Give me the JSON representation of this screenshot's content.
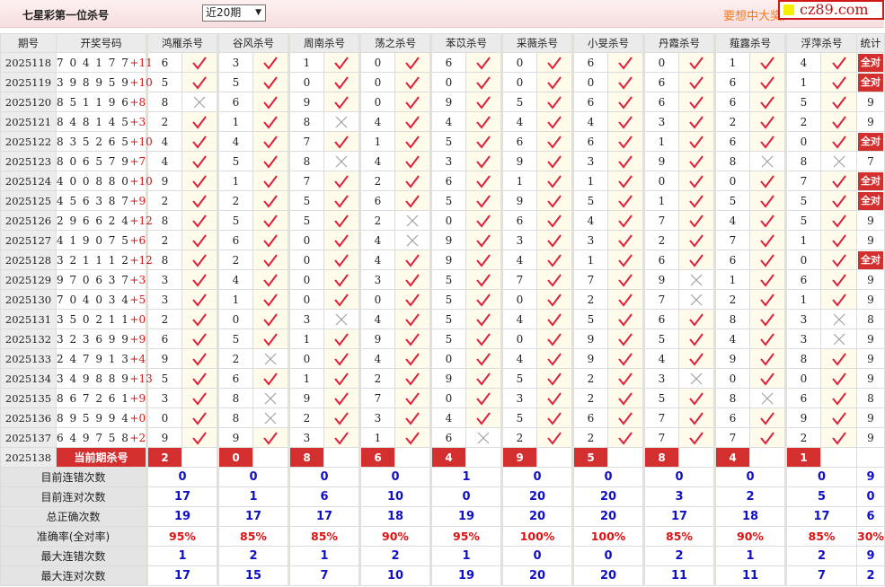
{
  "header": {
    "title": "七星彩第一位杀号",
    "period_select": "近20期",
    "promo": "要想中大奖,",
    "logo": "cz89.com"
  },
  "colors": {
    "hit": "#e0203a",
    "miss": "#999999",
    "accent": "#d32f2f",
    "stat_blue": "#1010c8"
  },
  "columns": [
    "期号",
    "开奖号码",
    "鸿雁杀号",
    "谷风杀号",
    "周南杀号",
    "荡之杀号",
    "苯苡杀号",
    "采薇杀号",
    "小旻杀号",
    "丹霞杀号",
    "薤露杀号",
    "浮萍杀号",
    "统计"
  ],
  "rows": [
    {
      "period": "2025118",
      "numbers": "704177",
      "bonus": "+11",
      "kills": [
        6,
        3,
        1,
        0,
        6,
        0,
        6,
        0,
        1,
        4
      ],
      "hits": [
        1,
        1,
        1,
        1,
        1,
        1,
        1,
        1,
        1,
        1
      ],
      "stat": "全对"
    },
    {
      "period": "2025119",
      "numbers": "398959",
      "bonus": "+10",
      "kills": [
        5,
        5,
        0,
        0,
        0,
        0,
        0,
        6,
        6,
        1
      ],
      "hits": [
        1,
        1,
        1,
        1,
        1,
        1,
        1,
        1,
        1,
        1
      ],
      "stat": "全对"
    },
    {
      "period": "2025120",
      "numbers": "851196",
      "bonus": "+8",
      "kills": [
        8,
        6,
        9,
        0,
        9,
        5,
        6,
        6,
        6,
        5
      ],
      "hits": [
        0,
        1,
        1,
        1,
        1,
        1,
        1,
        1,
        1,
        1
      ],
      "stat": "9"
    },
    {
      "period": "2025121",
      "numbers": "848145",
      "bonus": "+3",
      "kills": [
        2,
        1,
        8,
        4,
        4,
        4,
        4,
        3,
        2,
        2
      ],
      "hits": [
        1,
        1,
        0,
        1,
        1,
        1,
        1,
        1,
        1,
        1
      ],
      "stat": "9"
    },
    {
      "period": "2025122",
      "numbers": "835265",
      "bonus": "+10",
      "kills": [
        4,
        4,
        7,
        1,
        5,
        6,
        6,
        1,
        6,
        0
      ],
      "hits": [
        1,
        1,
        1,
        1,
        1,
        1,
        1,
        1,
        1,
        1
      ],
      "stat": "全对"
    },
    {
      "period": "2025123",
      "numbers": "806579",
      "bonus": "+7",
      "kills": [
        4,
        5,
        8,
        4,
        3,
        9,
        3,
        9,
        8,
        8
      ],
      "hits": [
        1,
        1,
        0,
        1,
        1,
        1,
        1,
        1,
        0,
        0
      ],
      "stat": "7"
    },
    {
      "period": "2025124",
      "numbers": "400880",
      "bonus": "+10",
      "kills": [
        9,
        1,
        7,
        2,
        6,
        1,
        1,
        0,
        0,
        7
      ],
      "hits": [
        1,
        1,
        1,
        1,
        1,
        1,
        1,
        1,
        1,
        1
      ],
      "stat": "全对"
    },
    {
      "period": "2025125",
      "numbers": "456387",
      "bonus": "+9",
      "kills": [
        2,
        2,
        5,
        6,
        5,
        9,
        5,
        1,
        5,
        5
      ],
      "hits": [
        1,
        1,
        1,
        1,
        1,
        1,
        1,
        1,
        1,
        1
      ],
      "stat": "全对"
    },
    {
      "period": "2025126",
      "numbers": "296624",
      "bonus": "+12",
      "kills": [
        8,
        5,
        5,
        2,
        0,
        6,
        4,
        7,
        4,
        5
      ],
      "hits": [
        1,
        1,
        1,
        0,
        1,
        1,
        1,
        1,
        1,
        1
      ],
      "stat": "9"
    },
    {
      "period": "2025127",
      "numbers": "419075",
      "bonus": "+6",
      "kills": [
        2,
        6,
        0,
        4,
        9,
        3,
        3,
        2,
        7,
        1
      ],
      "hits": [
        1,
        1,
        1,
        0,
        1,
        1,
        1,
        1,
        1,
        1
      ],
      "stat": "9"
    },
    {
      "period": "2025128",
      "numbers": "321112",
      "bonus": "+12",
      "kills": [
        8,
        2,
        0,
        4,
        9,
        4,
        1,
        6,
        6,
        0
      ],
      "hits": [
        1,
        1,
        1,
        1,
        1,
        1,
        1,
        1,
        1,
        1
      ],
      "stat": "全对"
    },
    {
      "period": "2025129",
      "numbers": "970637",
      "bonus": "+3",
      "kills": [
        3,
        4,
        0,
        3,
        5,
        7,
        7,
        9,
        1,
        6
      ],
      "hits": [
        1,
        1,
        1,
        1,
        1,
        1,
        1,
        0,
        1,
        1
      ],
      "stat": "9"
    },
    {
      "period": "2025130",
      "numbers": "704034",
      "bonus": "+5",
      "kills": [
        3,
        1,
        0,
        0,
        5,
        0,
        2,
        7,
        2,
        1
      ],
      "hits": [
        1,
        1,
        1,
        1,
        1,
        1,
        1,
        0,
        1,
        1
      ],
      "stat": "9"
    },
    {
      "period": "2025131",
      "numbers": "350211",
      "bonus": "+0",
      "kills": [
        2,
        0,
        3,
        4,
        5,
        4,
        5,
        6,
        8,
        3
      ],
      "hits": [
        1,
        1,
        0,
        1,
        1,
        1,
        1,
        1,
        1,
        0
      ],
      "stat": "8"
    },
    {
      "period": "2025132",
      "numbers": "323699",
      "bonus": "+9",
      "kills": [
        6,
        5,
        1,
        9,
        5,
        0,
        9,
        5,
        4,
        3
      ],
      "hits": [
        1,
        1,
        1,
        1,
        1,
        1,
        1,
        1,
        1,
        0
      ],
      "stat": "9"
    },
    {
      "period": "2025133",
      "numbers": "247913",
      "bonus": "+4",
      "kills": [
        9,
        2,
        0,
        4,
        0,
        4,
        9,
        4,
        9,
        8
      ],
      "hits": [
        1,
        0,
        1,
        1,
        1,
        1,
        1,
        1,
        1,
        1
      ],
      "stat": "9"
    },
    {
      "period": "2025134",
      "numbers": "349889",
      "bonus": "+13",
      "kills": [
        5,
        6,
        1,
        2,
        9,
        5,
        2,
        3,
        0,
        0
      ],
      "hits": [
        1,
        1,
        1,
        1,
        1,
        1,
        1,
        0,
        1,
        1
      ],
      "stat": "9"
    },
    {
      "period": "2025135",
      "numbers": "867261",
      "bonus": "+9",
      "kills": [
        3,
        8,
        9,
        7,
        0,
        3,
        2,
        5,
        8,
        6
      ],
      "hits": [
        1,
        0,
        1,
        1,
        1,
        1,
        1,
        1,
        0,
        1
      ],
      "stat": "8"
    },
    {
      "period": "2025136",
      "numbers": "895994",
      "bonus": "+0",
      "kills": [
        0,
        8,
        2,
        3,
        4,
        5,
        6,
        7,
        6,
        9
      ],
      "hits": [
        1,
        0,
        1,
        1,
        1,
        1,
        1,
        1,
        1,
        1
      ],
      "stat": "9"
    },
    {
      "period": "2025137",
      "numbers": "649758",
      "bonus": "+2",
      "kills": [
        9,
        9,
        3,
        1,
        6,
        2,
        2,
        7,
        7,
        2
      ],
      "hits": [
        1,
        1,
        1,
        1,
        0,
        1,
        1,
        1,
        1,
        1
      ],
      "stat": "9"
    }
  ],
  "current": {
    "period": "2025138",
    "label": "当前期杀号",
    "kills": [
      2,
      0,
      8,
      6,
      4,
      9,
      5,
      8,
      4,
      1
    ]
  },
  "stats": [
    {
      "label": "目前连错次数",
      "values": [
        "0",
        "0",
        "0",
        "0",
        "1",
        "0",
        "0",
        "0",
        "0",
        "0"
      ],
      "total": "9"
    },
    {
      "label": "目前连对次数",
      "values": [
        "17",
        "1",
        "6",
        "10",
        "0",
        "20",
        "20",
        "3",
        "2",
        "5"
      ],
      "total": "0"
    },
    {
      "label": "总正确次数",
      "values": [
        "19",
        "17",
        "17",
        "18",
        "19",
        "20",
        "20",
        "17",
        "18",
        "17"
      ],
      "total": "6"
    },
    {
      "label": "准确率(全对率)",
      "values": [
        "95%",
        "85%",
        "85%",
        "90%",
        "95%",
        "100%",
        "100%",
        "85%",
        "90%",
        "85%"
      ],
      "total": "30%",
      "percent": true
    },
    {
      "label": "最大连错次数",
      "values": [
        "1",
        "2",
        "1",
        "2",
        "1",
        "0",
        "0",
        "2",
        "1",
        "2"
      ],
      "total": "9"
    },
    {
      "label": "最大连对次数",
      "values": [
        "17",
        "15",
        "7",
        "10",
        "19",
        "20",
        "20",
        "11",
        "11",
        "7"
      ],
      "total": "2"
    }
  ]
}
